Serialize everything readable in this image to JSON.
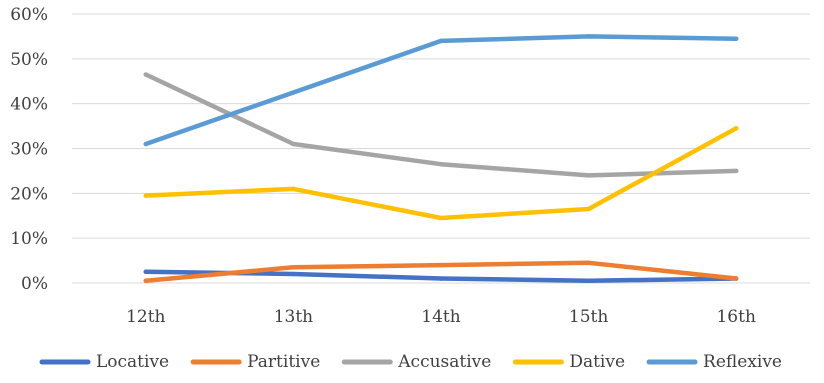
{
  "chart_data": {
    "type": "line",
    "title": "",
    "xlabel": "",
    "ylabel": "",
    "categories": [
      "12th",
      "13th",
      "14th",
      "15th",
      "16th"
    ],
    "y_ticks": [
      "0%",
      "10%",
      "20%",
      "30%",
      "40%",
      "50%",
      "60%"
    ],
    "ylim": [
      0,
      60
    ],
    "y_unit": "%",
    "grid": true,
    "legend_position": "bottom",
    "series": [
      {
        "name": "Locative",
        "color": "#4472C4",
        "values": [
          2.5,
          2.0,
          1.0,
          0.5,
          1.0
        ]
      },
      {
        "name": "Partitive",
        "color": "#ED7D31",
        "values": [
          0.5,
          3.5,
          4.0,
          4.5,
          1.0
        ]
      },
      {
        "name": "Accusative",
        "color": "#A5A5A5",
        "values": [
          46.5,
          31.0,
          26.5,
          24.0,
          25.0
        ]
      },
      {
        "name": "Dative",
        "color": "#FFC000",
        "values": [
          19.5,
          21.0,
          14.5,
          16.5,
          34.5
        ]
      },
      {
        "name": "Reflexive",
        "color": "#5B9BD5",
        "values": [
          31.0,
          42.5,
          54.0,
          55.0,
          54.5
        ]
      }
    ]
  }
}
